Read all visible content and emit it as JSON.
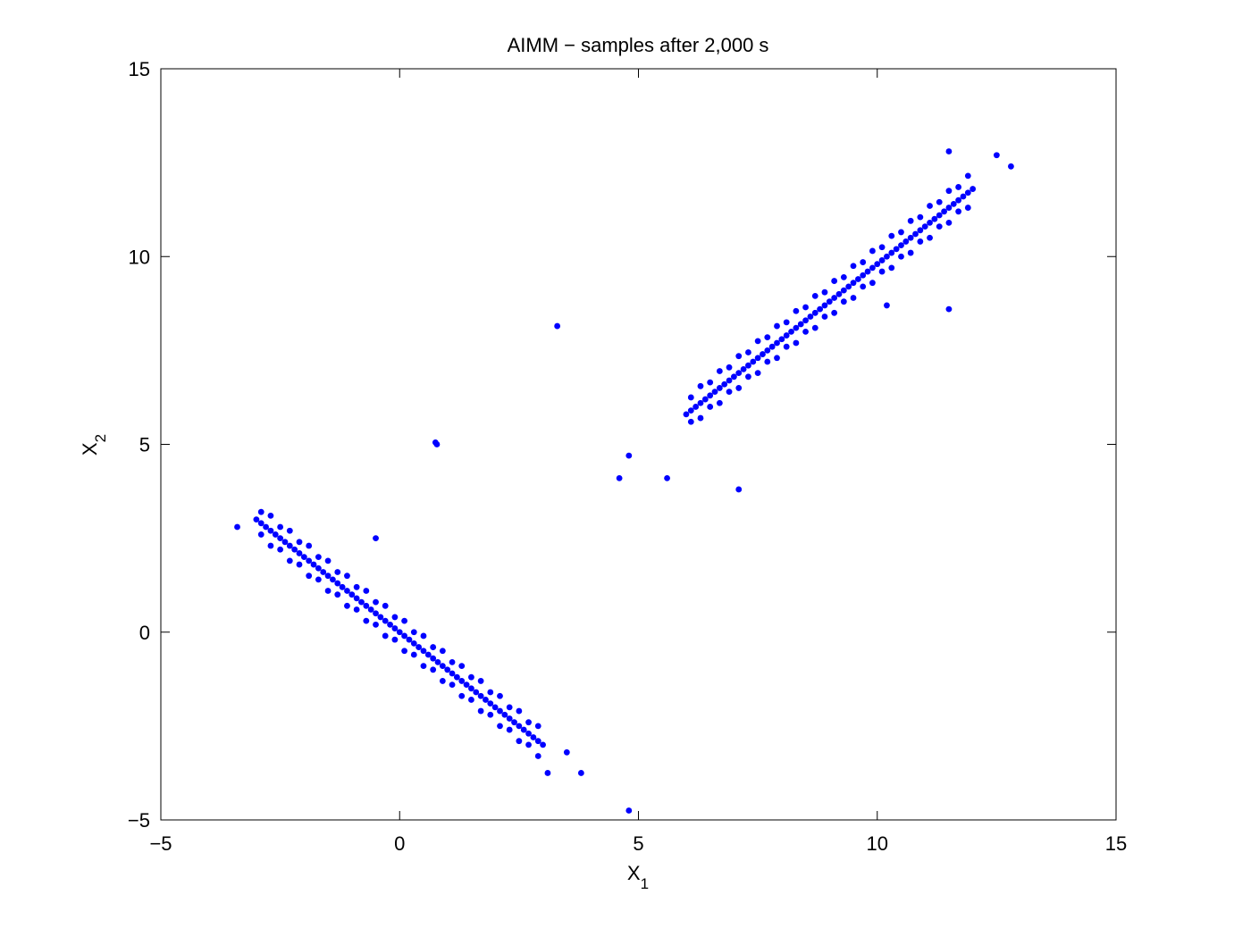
{
  "chart_data": {
    "type": "scatter",
    "title": "AIMM − samples after 2,000 s",
    "xlabel": {
      "base": "X",
      "sub": "1"
    },
    "ylabel": {
      "base": "X",
      "sub": "2"
    },
    "color": "#0000ff",
    "xlim": [
      -5,
      15
    ],
    "ylim": [
      -5,
      15
    ],
    "xticks": [
      {
        "value": -5,
        "label": "−5"
      },
      0,
      5,
      10,
      15
    ],
    "yticks": [
      {
        "value": -5,
        "label": "−5"
      },
      0,
      5,
      10,
      15
    ],
    "grid": false,
    "x": [
      -3,
      -2.9,
      -2.8,
      -2.7,
      -2.6,
      -2.5,
      -2.4,
      -2.3,
      -2.2,
      -2.1,
      -2,
      -1.9,
      -1.8,
      -1.7,
      -1.6,
      -1.5,
      -1.4,
      -1.3,
      -1.2,
      -1.1,
      -1,
      -0.9,
      -0.8,
      -0.7,
      -0.6,
      -0.5,
      -0.4,
      -0.3,
      -0.2,
      -0.1,
      0,
      0.1,
      0.2,
      0.3,
      0.4,
      0.5,
      0.6,
      0.7,
      0.8,
      0.9,
      1,
      1.1,
      1.2,
      1.3,
      1.4,
      1.5,
      1.6,
      1.7,
      1.8,
      1.9,
      2,
      2.1,
      2.2,
      2.3,
      2.4,
      2.5,
      2.6,
      2.7,
      2.8,
      2.9,
      3,
      -2.9,
      -2.7,
      -2.5,
      -2.3,
      -2.1,
      -1.9,
      -1.7,
      -1.5,
      -1.3,
      -1.1,
      -0.9,
      -0.7,
      -0.5,
      -0.3,
      -0.1,
      0.1,
      0.3,
      0.5,
      0.7,
      0.9,
      1.1,
      1.3,
      1.5,
      1.7,
      1.9,
      2.1,
      2.3,
      2.5,
      2.7,
      2.9,
      -2.9,
      -2.7,
      -2.5,
      -2.3,
      -2.1,
      -1.9,
      -1.7,
      -1.5,
      -1.3,
      -1.1,
      -0.9,
      -0.7,
      -0.5,
      -0.3,
      -0.1,
      0.1,
      0.3,
      0.5,
      0.7,
      0.9,
      1.1,
      1.3,
      1.5,
      1.7,
      1.9,
      2.1,
      2.3,
      2.5,
      2.7,
      2.9,
      6,
      6.1,
      6.2,
      6.3,
      6.4,
      6.5,
      6.6,
      6.7,
      6.8,
      6.9,
      7,
      7.1,
      7.2,
      7.3,
      7.4,
      7.5,
      7.6,
      7.7,
      7.8,
      7.9,
      8,
      8.1,
      8.2,
      8.3,
      8.4,
      8.5,
      8.6,
      8.7,
      8.8,
      8.9,
      9,
      9.1,
      9.2,
      9.3,
      9.4,
      9.5,
      9.6,
      9.7,
      9.8,
      9.9,
      10,
      10.1,
      10.2,
      10.3,
      10.4,
      10.5,
      10.6,
      10.7,
      10.8,
      10.9,
      11,
      11.1,
      11.2,
      11.3,
      11.4,
      11.5,
      11.6,
      11.7,
      11.8,
      11.9,
      12,
      6.1,
      6.3,
      6.5,
      6.7,
      6.9,
      7.1,
      7.3,
      7.5,
      7.7,
      7.9,
      8.1,
      8.3,
      8.5,
      8.7,
      8.9,
      9.1,
      9.3,
      9.5,
      9.7,
      9.9,
      10.1,
      10.3,
      10.5,
      10.7,
      10.9,
      11.1,
      11.3,
      11.5,
      11.7,
      11.9,
      6.1,
      6.3,
      6.5,
      6.7,
      6.9,
      7.1,
      7.3,
      7.5,
      7.7,
      7.9,
      8.1,
      8.3,
      8.5,
      8.7,
      8.9,
      9.1,
      9.3,
      9.5,
      9.7,
      9.9,
      10.1,
      10.3,
      10.5,
      10.7,
      10.9,
      11.1,
      11.3,
      11.5,
      11.7,
      11.9,
      3.3,
      0.75,
      0.78,
      4.6,
      4.8,
      5.6,
      7.1,
      4.8,
      3.8,
      3.1,
      -0.5,
      10.2,
      11.5,
      12.8,
      11.5,
      12.5,
      -3.4,
      3.5
    ],
    "values": [
      3,
      2.9,
      2.8,
      2.7,
      2.6,
      2.5,
      2.4,
      2.3,
      2.2,
      2.1,
      2,
      1.9,
      1.8,
      1.7,
      1.6,
      1.5,
      1.4,
      1.3,
      1.2,
      1.1,
      1,
      0.9,
      0.8,
      0.7,
      0.6,
      0.5,
      0.4,
      0.3,
      0.2,
      0.1,
      0,
      -0.1,
      -0.2,
      -0.3,
      -0.4,
      -0.5,
      -0.6,
      -0.7,
      -0.8,
      -0.9,
      -1,
      -1.1,
      -1.2,
      -1.3,
      -1.4,
      -1.5,
      -1.6,
      -1.7,
      -1.8,
      -1.9,
      -2,
      -2.1,
      -2.2,
      -2.3,
      -2.4,
      -2.5,
      -2.6,
      -2.7,
      -2.8,
      -2.9,
      -3,
      3.2,
      3.1,
      2.8,
      2.7,
      2.4,
      2.3,
      2,
      1.9,
      1.6,
      1.5,
      1.2,
      1.1,
      0.8,
      0.7,
      0.4,
      0.3,
      0,
      -0.1,
      -0.4,
      -0.5,
      -0.8,
      -0.9,
      -1.2,
      -1.3,
      -1.6,
      -1.7,
      -2,
      -2.1,
      -2.4,
      -2.5,
      2.6,
      2.3,
      2.2,
      1.9,
      1.8,
      1.5,
      1.4,
      1.1,
      1,
      0.7,
      0.6,
      0.3,
      0.2,
      -0.1,
      -0.2,
      -0.5,
      -0.6,
      -0.9,
      -1,
      -1.3,
      -1.4,
      -1.7,
      -1.8,
      -2.1,
      -2.2,
      -2.5,
      -2.6,
      -2.9,
      -3,
      -3.3,
      5.8,
      5.9,
      6,
      6.1,
      6.2,
      6.3,
      6.4,
      6.5,
      6.6,
      6.7,
      6.8,
      6.9,
      7,
      7.1,
      7.2,
      7.3,
      7.4,
      7.5,
      7.6,
      7.7,
      7.8,
      7.9,
      8,
      8.1,
      8.2,
      8.3,
      8.4,
      8.5,
      8.6,
      8.7,
      8.8,
      8.9,
      9,
      9.1,
      9.2,
      9.3,
      9.4,
      9.5,
      9.6,
      9.7,
      9.8,
      9.9,
      10,
      10.1,
      10.2,
      10.3,
      10.4,
      10.5,
      10.6,
      10.7,
      10.8,
      10.9,
      11,
      11.1,
      11.2,
      11.3,
      11.4,
      11.5,
      11.6,
      11.7,
      11.8,
      6.25,
      6.55,
      6.65,
      6.95,
      7.05,
      7.35,
      7.45,
      7.75,
      7.85,
      8.15,
      8.25,
      8.55,
      8.65,
      8.95,
      9.05,
      9.35,
      9.45,
      9.75,
      9.85,
      10.15,
      10.25,
      10.55,
      10.65,
      10.95,
      11.05,
      11.35,
      11.45,
      11.75,
      11.85,
      12.15,
      5.6,
      5.7,
      6,
      6.1,
      6.4,
      6.5,
      6.8,
      6.9,
      7.2,
      7.3,
      7.6,
      7.7,
      8,
      8.1,
      8.4,
      8.5,
      8.8,
      8.9,
      9.2,
      9.3,
      9.6,
      9.7,
      10,
      10.1,
      10.4,
      10.5,
      10.8,
      10.9,
      11.2,
      11.3,
      8.15,
      5.05,
      5,
      4.1,
      4.7,
      4.1,
      3.8,
      -4.75,
      -3.75,
      -3.75,
      2.5,
      8.7,
      8.6,
      12.4,
      12.8,
      12.7,
      2.8,
      -3.2
    ]
  }
}
